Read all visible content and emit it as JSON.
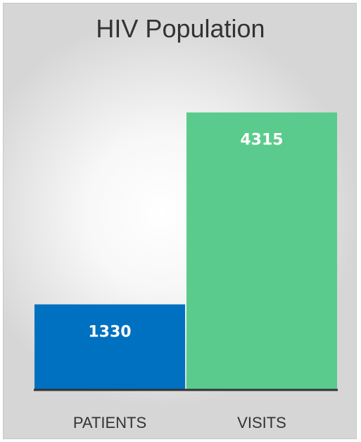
{
  "chart_data": {
    "type": "bar",
    "title": "HIV Population",
    "categories": [
      "PATIENTS",
      "VISITS"
    ],
    "values": [
      1330,
      4315
    ],
    "colors": [
      "#0070c0",
      "#5bcb8d"
    ],
    "ylim": [
      0,
      4750
    ],
    "grid": false,
    "legend": "none",
    "data_labels": true
  }
}
